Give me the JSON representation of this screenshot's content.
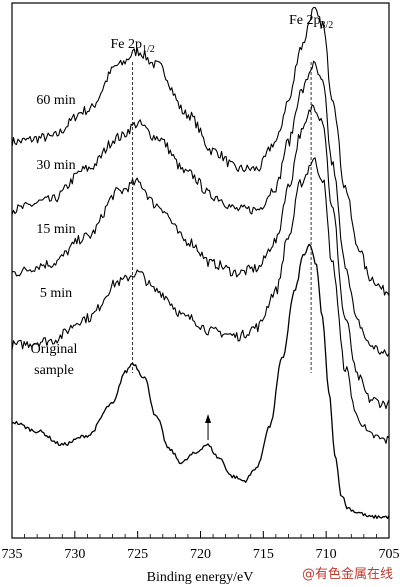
{
  "chart_data": {
    "type": "line",
    "xlabel": "Binding energy/eV",
    "xlim": [
      735,
      705
    ],
    "x_reversed": true,
    "x_ticks": [
      735,
      730,
      725,
      720,
      715,
      710,
      705
    ],
    "y_axis_shown": false,
    "grid": false,
    "reference_lines": [
      {
        "x": 725.4,
        "label_main": "Fe 2p",
        "label_sub": "1/2"
      },
      {
        "x": 711.2,
        "label_main": "Fe 2p",
        "label_sub": "3/2"
      }
    ],
    "annotation_arrow": {
      "x": 719.4
    },
    "series": [
      {
        "name": "60 min",
        "x": [
          735,
          732,
          729,
          726.5,
          725,
          723.5,
          721,
          719,
          717,
          715.5,
          714,
          713,
          712,
          711,
          710.3,
          709.5,
          708.5,
          707.5,
          706.5,
          705.3,
          705
        ],
        "y": [
          0.85,
          0.86,
          0.92,
          1.02,
          1.05,
          1.02,
          0.91,
          0.83,
          0.79,
          0.79,
          0.85,
          0.94,
          1.06,
          1.14,
          1.11,
          0.95,
          0.75,
          0.62,
          0.55,
          0.52,
          0.52
        ]
      },
      {
        "name": "30 min",
        "x": [
          735,
          732,
          729,
          726.5,
          725,
          723.5,
          721,
          719,
          717,
          715.5,
          714,
          713,
          712,
          711,
          710.3,
          709.5,
          708.5,
          707.5,
          706.5,
          705.3,
          705
        ],
        "y": [
          0.7,
          0.72,
          0.79,
          0.86,
          0.89,
          0.86,
          0.78,
          0.73,
          0.7,
          0.7,
          0.75,
          0.85,
          0.96,
          1.02,
          0.98,
          0.8,
          0.58,
          0.45,
          0.4,
          0.38,
          0.38
        ]
      },
      {
        "name": "15 min",
        "x": [
          735,
          732,
          729,
          726.5,
          725,
          723.5,
          721,
          719,
          717,
          715.5,
          714,
          713,
          712,
          711,
          710.3,
          709.5,
          708.5,
          707.5,
          706.5,
          705.3,
          705
        ],
        "y": [
          0.56,
          0.58,
          0.64,
          0.74,
          0.76,
          0.71,
          0.63,
          0.58,
          0.56,
          0.57,
          0.63,
          0.75,
          0.87,
          0.93,
          0.9,
          0.7,
          0.46,
          0.33,
          0.28,
          0.27,
          0.27
        ]
      },
      {
        "name": "5 min",
        "x": [
          735,
          732,
          729,
          726.5,
          725,
          723.5,
          721,
          719,
          717,
          715.5,
          714,
          713,
          712,
          711,
          710.3,
          709.5,
          708.5,
          707.5,
          706.5,
          705.3,
          705
        ],
        "y": [
          0.4,
          0.41,
          0.46,
          0.54,
          0.56,
          0.52,
          0.46,
          0.43,
          0.42,
          0.44,
          0.52,
          0.64,
          0.76,
          0.81,
          0.77,
          0.58,
          0.35,
          0.24,
          0.2,
          0.19,
          0.19
        ]
      },
      {
        "name": "Original sample",
        "x": [
          735,
          733,
          731,
          729,
          727,
          726,
          725.4,
          724.5,
          723.5,
          722.5,
          721.5,
          720.5,
          719.5,
          718.5,
          717.5,
          716.5,
          715.5,
          714.5,
          713.5,
          712.5,
          711.8,
          711.3,
          710.8,
          710.3,
          709.8,
          709.3,
          708.8,
          708.3,
          707.5,
          706.5,
          705.5,
          705
        ],
        "y": [
          0.23,
          0.21,
          0.18,
          0.2,
          0.27,
          0.34,
          0.36,
          0.33,
          0.24,
          0.17,
          0.14,
          0.16,
          0.18,
          0.15,
          0.11,
          0.1,
          0.13,
          0.22,
          0.37,
          0.52,
          0.6,
          0.62,
          0.58,
          0.46,
          0.3,
          0.16,
          0.07,
          0.04,
          0.03,
          0.02,
          0.02,
          0.02
        ]
      }
    ]
  },
  "watermark": "@有色金属在线"
}
